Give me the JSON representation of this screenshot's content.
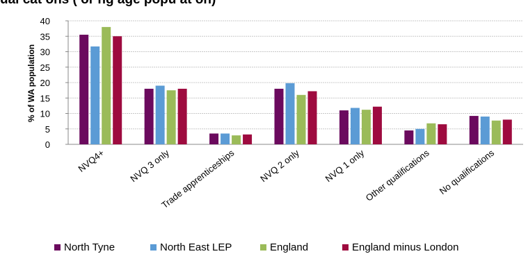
{
  "chart_data": {
    "type": "bar",
    "title": "% of WA population",
    "visible_title_fragment": "ual   cat ons (  or  ng age popu at on)",
    "ylabel": "% of WA population",
    "xlabel": "",
    "ylim": [
      0,
      40
    ],
    "yticks": [
      0,
      5,
      10,
      15,
      20,
      25,
      30,
      35,
      40
    ],
    "grid": true,
    "legend_position": "bottom",
    "categories": [
      "NVQ4+",
      "NVQ 3 only",
      "Trade apprenticeships",
      "NVQ 2 only",
      "NVQ 1 only",
      "Other qualifications",
      "No qualifications"
    ],
    "series": [
      {
        "name": "North Tyne",
        "color": "#6b0a5e",
        "values": [
          35.5,
          18.0,
          3.5,
          18.0,
          11.0,
          4.5,
          9.2
        ]
      },
      {
        "name": "North East LEP",
        "color": "#5b9bd5",
        "values": [
          31.7,
          19.0,
          3.5,
          19.8,
          11.8,
          5.0,
          9.0
        ]
      },
      {
        "name": "England",
        "color": "#9bbb59",
        "values": [
          38.0,
          17.5,
          2.9,
          16.0,
          11.2,
          6.8,
          7.7
        ]
      },
      {
        "name": "England minus London",
        "color": "#9e0b3f",
        "values": [
          35.0,
          18.0,
          3.2,
          17.2,
          12.2,
          6.5,
          8.0
        ]
      }
    ]
  }
}
